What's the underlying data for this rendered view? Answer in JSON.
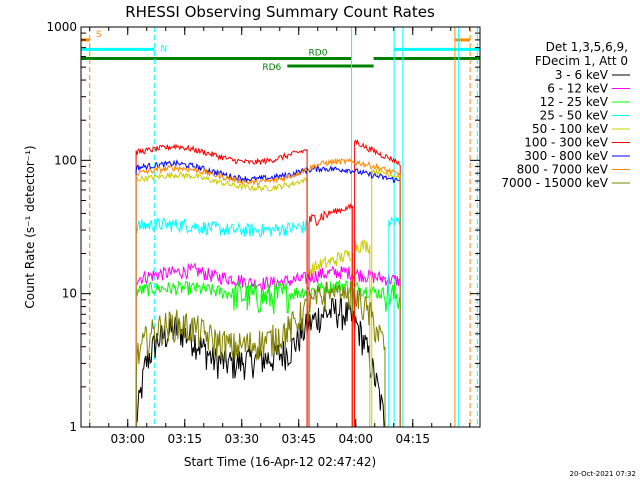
{
  "chart_data": {
    "type": "line",
    "title": "RHESSI Observing Summary Count Rates",
    "xlabel": "Start Time (16-Apr-12 02:47:42)",
    "ylabel": "Count Rate (s⁻¹ detector⁻¹)",
    "x_range_minutes": [
      0,
      105
    ],
    "ylim": [
      1,
      1000
    ],
    "yscale": "log",
    "x_tick_labels": [
      "03:00",
      "03:15",
      "03:30",
      "03:45",
      "04:00",
      "04:15"
    ],
    "x_tick_minutes": [
      12.3,
      27.3,
      42.3,
      57.3,
      72.3,
      87.3
    ],
    "y_tick_labels": [
      "1",
      "10",
      "100",
      "1000"
    ],
    "y_tick_values": [
      1,
      10,
      100,
      1000
    ],
    "legend": {
      "placement": "right",
      "header_lines": [
        "Det 1,3,5,6,9,",
        "FDecim 1, Att 0"
      ],
      "entries": [
        {
          "label": "3 - 6 keV",
          "color": "#000000"
        },
        {
          "label": "6 - 12 keV",
          "color": "#ff00ff"
        },
        {
          "label": "12 - 25 keV",
          "color": "#00ff00"
        },
        {
          "label": "25 - 50 keV",
          "color": "#00ffff"
        },
        {
          "label": "50 - 100 keV",
          "color": "#cccc00"
        },
        {
          "label": "100 - 300 keV",
          "color": "#ff0000"
        },
        {
          "label": "300 - 800 keV",
          "color": "#0000ff"
        },
        {
          "label": "800 - 7000 keV",
          "color": "#ff8800"
        },
        {
          "label": "7000 - 15000 keV",
          "color": "#808000"
        }
      ]
    },
    "series": [
      {
        "name": "3 - 6 keV",
        "color": "#000000",
        "x": [
          14.5,
          17,
          20,
          25,
          30,
          35,
          40,
          45,
          50,
          55,
          59,
          63,
          67,
          70,
          73,
          75,
          78,
          80
        ],
        "y": [
          1.1,
          3.0,
          4.5,
          5.5,
          4.5,
          3.2,
          3.0,
          3.2,
          3.3,
          3.8,
          5.5,
          7.0,
          7.5,
          7.0,
          5.5,
          4.0,
          2.0,
          1.1
        ]
      },
      {
        "name": "6 - 12 keV",
        "color": "#ff00ff",
        "x": [
          14.5,
          20,
          25,
          30,
          35,
          40,
          45,
          50,
          55,
          59,
          63,
          67,
          70,
          73,
          76,
          80,
          84
        ],
        "y": [
          13,
          14,
          14.5,
          15,
          13.5,
          13,
          12,
          12,
          12.5,
          13,
          14,
          14.5,
          14.5,
          14,
          13.5,
          13,
          12.5
        ]
      },
      {
        "name": "12 - 25 keV",
        "color": "#00ff00",
        "x": [
          14.5,
          20,
          25,
          30,
          35,
          40,
          45,
          50,
          55,
          59,
          63,
          67,
          70,
          73,
          76,
          80,
          84
        ],
        "y": [
          10.5,
          11,
          11,
          11,
          10.5,
          10,
          9.5,
          9.5,
          10,
          10.5,
          11,
          11.5,
          11.5,
          11,
          10.5,
          10,
          9.5
        ]
      },
      {
        "name": "25 - 50 keV",
        "color": "#00ffff",
        "x": [
          14.5,
          20,
          25,
          30,
          35,
          40,
          45,
          50,
          55,
          59.5
        ],
        "y": [
          32,
          33,
          33,
          32,
          31,
          30,
          30,
          30,
          31,
          32
        ]
      },
      {
        "name": "25 - 50 keV",
        "color": "#00ffff",
        "x": [
          81,
          82,
          83,
          84
        ],
        "y": [
          35,
          35,
          34,
          34
        ]
      },
      {
        "name": "50 - 100 keV",
        "color": "#cccc00",
        "x": [
          14.5,
          20,
          25,
          30,
          35,
          40,
          45,
          50,
          55,
          59.5
        ],
        "y": [
          72,
          75,
          78,
          76,
          70,
          65,
          62,
          62,
          66,
          72
        ]
      },
      {
        "name": "50 - 100 keV",
        "color": "#cccc00",
        "x": [
          60,
          63,
          66,
          69,
          71.5
        ],
        "y": [
          15,
          16.5,
          17.5,
          19,
          20
        ]
      },
      {
        "name": "50 - 100 keV",
        "color": "#cccc00",
        "x": [
          72,
          74,
          76
        ],
        "y": [
          23,
          23,
          23
        ]
      },
      {
        "name": "50 - 100 keV",
        "color": "#cccc00",
        "x": [
          76.5,
          78,
          80,
          82,
          84
        ],
        "y": [
          84,
          82,
          80,
          78,
          75
        ]
      },
      {
        "name": "100 - 300 keV",
        "color": "#ff0000",
        "x": [
          14.5,
          17,
          20,
          25,
          30,
          35,
          40,
          45,
          50,
          55,
          59.5
        ],
        "y": [
          115,
          118,
          122,
          128,
          120,
          110,
          100,
          96,
          100,
          110,
          120
        ]
      },
      {
        "name": "100 - 300 keV",
        "color": "#ff0000",
        "x": [
          60,
          63,
          66,
          69,
          71.5
        ],
        "y": [
          35,
          38,
          41,
          43,
          45
        ]
      },
      {
        "name": "100 - 300 keV",
        "color": "#ff0000",
        "x": [
          72,
          73,
          75,
          77,
          79,
          81,
          83,
          84
        ],
        "y": [
          140,
          135,
          125,
          118,
          110,
          105,
          98,
          92
        ]
      },
      {
        "name": "300 - 800 keV",
        "color": "#0000ff",
        "x": [
          14.5,
          17,
          20,
          25,
          30,
          35,
          40,
          45,
          50,
          55,
          59,
          63,
          67,
          70,
          73,
          76,
          80,
          84
        ],
        "y": [
          88,
          90,
          92,
          95,
          90,
          82,
          75,
          72,
          74,
          78,
          84,
          87,
          86,
          85,
          82,
          78,
          74,
          70
        ]
      },
      {
        "name": "800 - 7000 keV",
        "color": "#ff8800",
        "x": [
          14.5,
          17,
          20,
          25,
          30,
          35,
          40,
          45,
          50,
          55,
          59,
          63,
          67,
          70,
          73,
          76,
          80,
          84
        ],
        "y": [
          80,
          82,
          85,
          88,
          85,
          78,
          72,
          68,
          70,
          76,
          85,
          94,
          98,
          98,
          96,
          92,
          85,
          78
        ]
      },
      {
        "name": "7000 - 15000 keV",
        "color": "#808000",
        "x": [
          14.5,
          17,
          20,
          25,
          30,
          35,
          40,
          45,
          50,
          55,
          59,
          63,
          67,
          70,
          73,
          76,
          80
        ],
        "y": [
          3.2,
          4.5,
          5.5,
          6.0,
          5.5,
          4.5,
          4.0,
          4.2,
          4.5,
          5.5,
          7.5,
          9.5,
          10.5,
          10.2,
          9.0,
          7.0,
          4.0
        ]
      }
    ],
    "status_bars": [
      {
        "label": "S",
        "color": "#ff8800",
        "x_start": 0,
        "x_end": 2.3,
        "y": 800
      },
      {
        "label": "S",
        "color": "#ff8800",
        "x_start": 98.4,
        "x_end": 102.4,
        "y": 800
      },
      {
        "label": "N",
        "color": "#00ffff",
        "x_start": 0,
        "x_end": 19.3,
        "y": 680
      },
      {
        "label": "N",
        "color": "#00ffff",
        "x_start": 82.4,
        "x_end": 105,
        "y": 680
      },
      {
        "label": "RD0",
        "color": "#008000",
        "x_start": 0,
        "x_end": 71.2,
        "y": 580
      },
      {
        "label": "RD6",
        "color": "#008000",
        "x_start": 54.3,
        "x_end": 77.0,
        "y": 510
      },
      {
        "label": "RD0",
        "color": "#008000",
        "x_start": 77.0,
        "x_end": 105,
        "y": 580
      }
    ],
    "vertical_markers": [
      {
        "x": 2.3,
        "color": "#ff8800",
        "style": "dashed"
      },
      {
        "x": 19.3,
        "color": "#00ffff",
        "style": "dashed"
      },
      {
        "x": 71.2,
        "color": "#00ffff",
        "style": "solid"
      },
      {
        "x": 82.4,
        "color": "#00ffff",
        "style": "solid"
      },
      {
        "x": 84.7,
        "color": "#00ffff",
        "style": "solid"
      },
      {
        "x": 98.4,
        "color": "#ff8800",
        "style": "solid"
      },
      {
        "x": 99.4,
        "color": "#00ffff",
        "style": "solid"
      },
      {
        "x": 102.4,
        "color": "#ff8800",
        "style": "dashed"
      },
      {
        "x": 104.3,
        "color": "#00ffff",
        "style": "dashed"
      }
    ],
    "footer_text": "20-Oct-2021 07:32"
  }
}
